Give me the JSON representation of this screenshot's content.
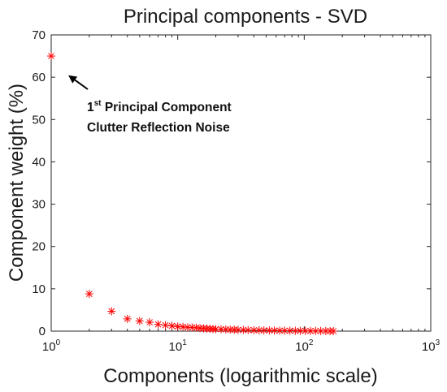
{
  "chart_data": {
    "type": "scatter",
    "title": "Principal components - SVD",
    "xlabel": "Components (logarithmic scale)",
    "ylabel": "Component weight (%)",
    "xscale": "log",
    "xlim": [
      1,
      1000
    ],
    "ylim": [
      0,
      70
    ],
    "xticks": [
      {
        "base": "10",
        "exp": "0"
      },
      {
        "base": "10",
        "exp": "1"
      },
      {
        "base": "10",
        "exp": "2"
      },
      {
        "base": "10",
        "exp": "3"
      }
    ],
    "yticks": [
      "0",
      "10",
      "20",
      "30",
      "40",
      "50",
      "60",
      "70"
    ],
    "ytick_values": [
      0,
      10,
      20,
      30,
      40,
      50,
      60,
      70
    ],
    "grid": false,
    "marker": "asterisk",
    "marker_color": "#ff0000",
    "series": [
      {
        "x": [
          1,
          2,
          3,
          4,
          5,
          6,
          7,
          8,
          9,
          10,
          11,
          12,
          13,
          14,
          15,
          16,
          17,
          18,
          19,
          20,
          22,
          24,
          26,
          28,
          30,
          33,
          36,
          40,
          44,
          48,
          53,
          58,
          64,
          70,
          77,
          85,
          93,
          102,
          112,
          123,
          135,
          148,
          160,
          170
        ],
        "y": [
          65,
          8.8,
          4.7,
          2.9,
          2.4,
          2.1,
          1.6,
          1.4,
          1.25,
          1.1,
          1.0,
          0.9,
          0.85,
          0.8,
          0.7,
          0.65,
          0.6,
          0.55,
          0.5,
          0.48,
          0.45,
          0.4,
          0.36,
          0.33,
          0.3,
          0.28,
          0.25,
          0.22,
          0.2,
          0.18,
          0.16,
          0.14,
          0.12,
          0.11,
          0.1,
          0.08,
          0.07,
          0.06,
          0.05,
          0.04,
          0.03,
          0.02,
          0.015,
          0.01
        ]
      }
    ],
    "annotation": {
      "line1_prefix": "1",
      "line1_sup": "st",
      "line1_rest": " Principal Component",
      "line2": "Clutter Reflection Noise",
      "arrow_target": {
        "x": 1.25,
        "y": 62
      }
    }
  }
}
